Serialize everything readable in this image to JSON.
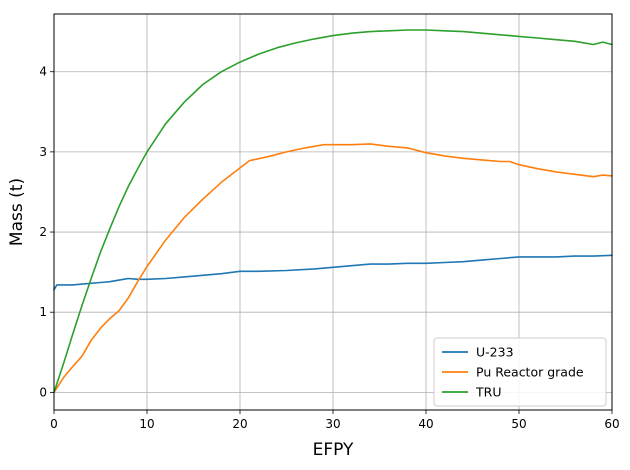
{
  "chart_data": {
    "type": "line",
    "title": "",
    "xlabel": "EFPY",
    "ylabel": "Mass (t)",
    "xlim": [
      0,
      60
    ],
    "ylim": [
      -0.22,
      4.72
    ],
    "xticks": [
      0,
      10,
      20,
      30,
      40,
      50,
      60
    ],
    "yticks": [
      0,
      1,
      2,
      3,
      4
    ],
    "grid": true,
    "legend_position": "lower-right",
    "series": [
      {
        "name": "U-233",
        "color": "#1f77b4",
        "x": [
          0,
          0.3,
          1,
          2,
          3,
          4,
          5,
          6,
          7,
          8,
          9,
          10,
          12,
          14,
          16,
          18,
          20,
          22,
          25,
          28,
          30,
          32,
          34,
          36,
          38,
          40,
          42,
          44,
          46,
          48,
          50,
          52,
          54,
          56,
          58,
          60
        ],
        "y": [
          1.28,
          1.34,
          1.34,
          1.34,
          1.35,
          1.36,
          1.37,
          1.38,
          1.4,
          1.42,
          1.41,
          1.41,
          1.42,
          1.44,
          1.46,
          1.48,
          1.51,
          1.51,
          1.52,
          1.54,
          1.56,
          1.58,
          1.6,
          1.6,
          1.61,
          1.61,
          1.62,
          1.63,
          1.65,
          1.67,
          1.69,
          1.69,
          1.69,
          1.7,
          1.7,
          1.71
        ]
      },
      {
        "name": "Pu Reactor grade",
        "color": "#ff7f0e",
        "x": [
          0,
          1,
          2,
          3,
          4,
          5,
          6,
          7,
          8,
          9,
          10,
          12,
          14,
          16,
          18,
          20,
          21,
          23,
          25,
          27,
          29,
          30,
          32,
          34,
          36,
          38,
          40,
          42,
          44,
          46,
          48,
          49,
          50,
          52,
          54,
          56,
          58,
          59,
          60
        ],
        "y": [
          0,
          0.18,
          0.32,
          0.45,
          0.65,
          0.8,
          0.92,
          1.02,
          1.18,
          1.38,
          1.57,
          1.9,
          2.18,
          2.41,
          2.62,
          2.8,
          2.89,
          2.94,
          3.0,
          3.05,
          3.09,
          3.09,
          3.09,
          3.1,
          3.07,
          3.05,
          2.99,
          2.95,
          2.92,
          2.9,
          2.88,
          2.88,
          2.84,
          2.79,
          2.75,
          2.72,
          2.69,
          2.71,
          2.7
        ]
      },
      {
        "name": "TRU",
        "color": "#2ca02c",
        "x": [
          0,
          1,
          2,
          3,
          4,
          5,
          6,
          7,
          8,
          9,
          10,
          12,
          14,
          16,
          18,
          20,
          22,
          24,
          26,
          28,
          30,
          32,
          34,
          36,
          38,
          40,
          42,
          44,
          46,
          48,
          50,
          52,
          54,
          56,
          58,
          59,
          60
        ],
        "y": [
          0,
          0.35,
          0.72,
          1.08,
          1.42,
          1.75,
          2.04,
          2.32,
          2.57,
          2.79,
          3.0,
          3.35,
          3.62,
          3.84,
          4.0,
          4.12,
          4.22,
          4.3,
          4.36,
          4.41,
          4.45,
          4.48,
          4.5,
          4.51,
          4.52,
          4.52,
          4.51,
          4.5,
          4.48,
          4.46,
          4.44,
          4.42,
          4.4,
          4.38,
          4.34,
          4.37,
          4.34
        ]
      }
    ]
  }
}
